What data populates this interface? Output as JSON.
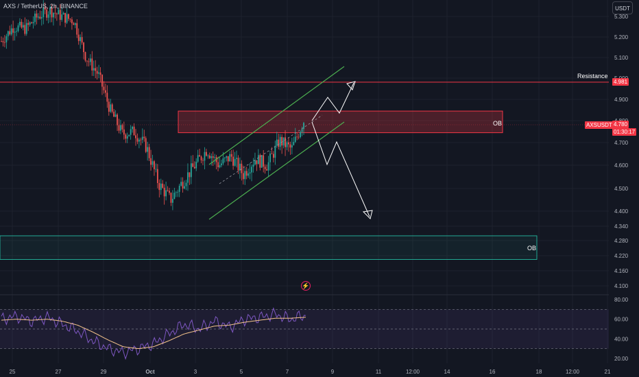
{
  "header": {
    "symbol_title": "AXS / TetherUS, 2h, BINANCE",
    "currency_button": "USDT"
  },
  "annotations": {
    "resistance_label": "Resistance",
    "ob_upper_label": "OB",
    "ob_lower_label": "OB",
    "flash_icon": "lightning-icon"
  },
  "badges": {
    "resistance_price": "4.981",
    "symbol": "AXSUSDT",
    "last_price": "4.780",
    "countdown": "01:30:17"
  },
  "colors": {
    "background": "#131722",
    "up": "#26a69a",
    "down": "#ef5350",
    "resistance": "#f23645",
    "ob_upper_border": "#f23645",
    "ob_upper_fill": "#f2364540",
    "ob_lower_border": "#22ab94",
    "ob_lower_fill": "#22ab9414",
    "channel": "#4caf50",
    "rsi": "#7e57c2",
    "rsi_ma": "#f7c58c",
    "arrow": "#ffffff"
  },
  "chart_data": [
    {
      "type": "candlestick",
      "title": "AXS / TetherUS, 2h, BINANCE",
      "ylim": [
        4.05,
        5.33
      ],
      "y_ticks": [
        "5.300",
        "5.200",
        "5.100",
        "5.000",
        "4.900",
        "4.800",
        "4.700",
        "4.600",
        "4.500",
        "4.400",
        "4.340",
        "4.280",
        "4.220",
        "4.160",
        "4.100"
      ],
      "x_ticks": [
        "25",
        "27",
        "29",
        "Oct",
        "3",
        "5",
        "7",
        "9",
        "11",
        "12:00",
        "14",
        "16",
        "18",
        "12:00",
        "21"
      ],
      "close_path": [
        5.18,
        5.25,
        5.24,
        5.3,
        5.33,
        5.3,
        5.28,
        5.1,
        5.02,
        4.85,
        4.74,
        4.75,
        4.68,
        4.52,
        4.45,
        4.53,
        4.6,
        4.67,
        4.6,
        4.64,
        4.56,
        4.63,
        4.6,
        4.71,
        4.67,
        4.8
      ],
      "resistance": 4.981,
      "last_price": 4.78,
      "order_blocks": [
        {
          "label": "OB",
          "top": 4.845,
          "bottom": 4.745
        },
        {
          "label": "OB",
          "top": 4.3,
          "bottom": 4.205
        }
      ],
      "channel": {
        "upper": [
          [
            4.62
          ],
          [
            5.05
          ]
        ],
        "lower": [
          [
            4.37
          ],
          [
            4.8
          ]
        ]
      },
      "projection": [
        "up to resistance 4.981",
        "down to 4.37"
      ]
    },
    {
      "type": "line",
      "title": "RSI",
      "ylim": [
        20,
        80
      ],
      "y_ticks": [
        "80.00",
        "60.00",
        "40.00",
        "20.00"
      ],
      "bands": [
        70,
        50,
        30
      ],
      "series": [
        {
          "values": [
            60,
            63,
            58,
            62,
            55,
            48,
            38,
            30,
            26,
            30,
            35,
            45,
            55,
            50,
            58,
            52,
            60,
            62,
            65,
            60,
            64
          ]
        },
        {
          "values": [
            59,
            60,
            59,
            60,
            58,
            54,
            47,
            39,
            32,
            30,
            32,
            38,
            45,
            49,
            53,
            54,
            57,
            59,
            61,
            61,
            62
          ]
        }
      ]
    }
  ]
}
